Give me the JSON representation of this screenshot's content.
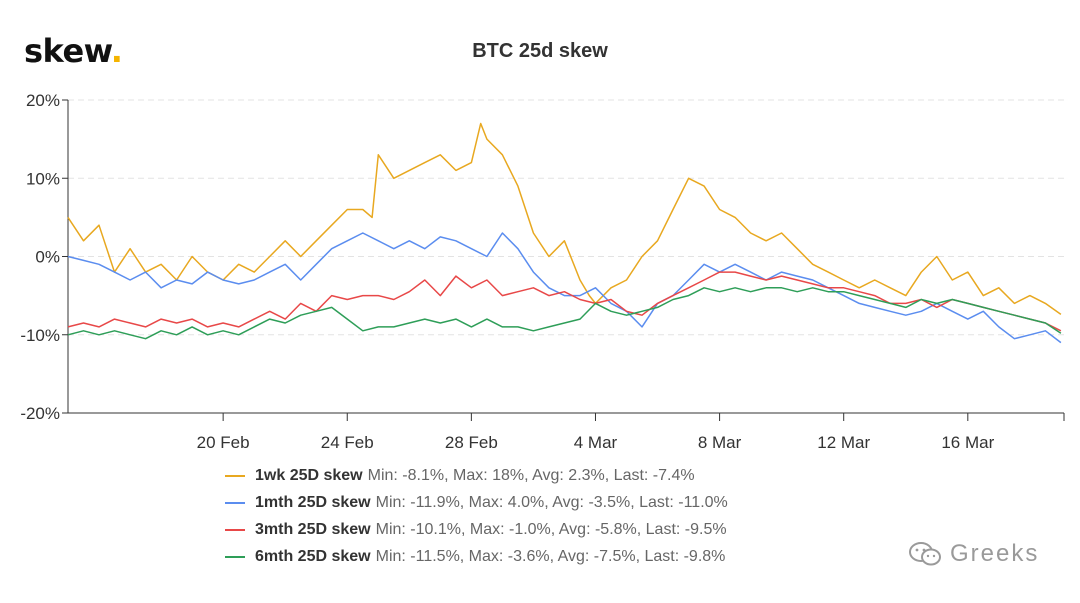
{
  "header": {
    "logo_text": "skew",
    "logo_dot": ".",
    "title": "BTC 25d skew"
  },
  "watermark": {
    "text": "Greeks",
    "icon": "wechat-icon"
  },
  "chart_data": {
    "type": "line",
    "title": "BTC 25d skew",
    "xlabel": "",
    "ylabel": "",
    "ylim": [
      -20,
      20
    ],
    "y_ticks": [
      20,
      10,
      0,
      -10,
      -20
    ],
    "y_tick_labels": [
      "20%",
      "10%",
      "0%",
      "-10%",
      "-20%"
    ],
    "xlim": [
      15.0,
      47.1
    ],
    "x_ticks": [
      20,
      24,
      28,
      32,
      36,
      40,
      44
    ],
    "x_tick_labels": [
      "20 Feb",
      "24 Feb",
      "28 Feb",
      "4 Mar",
      "8 Mar",
      "12 Mar",
      "16 Mar"
    ],
    "grid": "horizontal dashed",
    "legend_position": "bottom",
    "series": [
      {
        "name": "1wk 25D skew",
        "stats": "Min: -8.1%, Max: 18%, Avg: 2.3%, Last: -7.4%",
        "color": "#e8a820",
        "x": [
          15.0,
          15.5,
          16.0,
          16.5,
          17.0,
          17.5,
          18.0,
          18.5,
          19.0,
          19.5,
          20.0,
          20.5,
          21.0,
          21.5,
          22.0,
          22.5,
          23.0,
          23.5,
          24.0,
          24.5,
          24.8,
          25.0,
          25.5,
          26.0,
          26.5,
          27.0,
          27.5,
          28.0,
          28.3,
          28.5,
          29.0,
          29.5,
          30.0,
          30.5,
          31.0,
          31.5,
          31.8,
          32.0,
          32.5,
          33.0,
          33.5,
          34.0,
          34.5,
          35.0,
          35.5,
          36.0,
          36.5,
          37.0,
          37.5,
          38.0,
          38.5,
          39.0,
          39.5,
          40.0,
          40.5,
          41.0,
          41.5,
          42.0,
          42.5,
          43.0,
          43.5,
          44.0,
          44.5,
          45.0,
          45.5,
          46.0,
          46.5,
          47.0
        ],
        "values": [
          5.0,
          2.0,
          4.0,
          -2.0,
          1.0,
          -2.0,
          -1.0,
          -3.0,
          0.0,
          -2.0,
          -3.0,
          -1.0,
          -2.0,
          0.0,
          2.0,
          0.0,
          2.0,
          4.0,
          6.0,
          6.0,
          5.0,
          13.0,
          10.0,
          11.0,
          12.0,
          13.0,
          11.0,
          12.0,
          17.0,
          15.0,
          13.0,
          9.0,
          3.0,
          0.0,
          2.0,
          -3.0,
          -5.0,
          -6.0,
          -4.0,
          -3.0,
          0.0,
          2.0,
          6.0,
          10.0,
          9.0,
          6.0,
          5.0,
          3.0,
          2.0,
          3.0,
          1.0,
          -1.0,
          -2.0,
          -3.0,
          -4.0,
          -3.0,
          -4.0,
          -5.0,
          -2.0,
          0.0,
          -3.0,
          -2.0,
          -5.0,
          -4.0,
          -6.0,
          -5.0,
          -6.0,
          -7.4
        ]
      },
      {
        "name": "1mth 25D skew",
        "stats": "Min: -11.9%, Max: 4.0%, Avg: -3.5%, Last: -11.0%",
        "color": "#5b8def",
        "x": [
          15.0,
          15.5,
          16.0,
          16.5,
          17.0,
          17.5,
          18.0,
          18.5,
          19.0,
          19.5,
          20.0,
          20.5,
          21.0,
          21.5,
          22.0,
          22.5,
          23.0,
          23.5,
          24.0,
          24.5,
          25.0,
          25.5,
          26.0,
          26.5,
          27.0,
          27.5,
          28.0,
          28.5,
          29.0,
          29.5,
          30.0,
          30.5,
          31.0,
          31.5,
          32.0,
          32.5,
          33.0,
          33.5,
          34.0,
          34.5,
          35.0,
          35.5,
          36.0,
          36.5,
          37.0,
          37.5,
          38.0,
          38.5,
          39.0,
          39.5,
          40.0,
          40.5,
          41.0,
          41.5,
          42.0,
          42.5,
          43.0,
          43.5,
          44.0,
          44.5,
          45.0,
          45.5,
          46.0,
          46.5,
          47.0
        ],
        "values": [
          0.0,
          -0.5,
          -1.0,
          -2.0,
          -3.0,
          -2.0,
          -4.0,
          -3.0,
          -3.5,
          -2.0,
          -3.0,
          -3.5,
          -3.0,
          -2.0,
          -1.0,
          -3.0,
          -1.0,
          1.0,
          2.0,
          3.0,
          2.0,
          1.0,
          2.0,
          1.0,
          2.5,
          2.0,
          1.0,
          0.0,
          3.0,
          1.0,
          -2.0,
          -4.0,
          -5.0,
          -5.0,
          -4.0,
          -6.0,
          -7.0,
          -9.0,
          -6.0,
          -5.0,
          -3.0,
          -1.0,
          -2.0,
          -1.0,
          -2.0,
          -3.0,
          -2.0,
          -2.5,
          -3.0,
          -4.0,
          -5.0,
          -6.0,
          -6.5,
          -7.0,
          -7.5,
          -7.0,
          -6.0,
          -7.0,
          -8.0,
          -7.0,
          -9.0,
          -10.5,
          -10.0,
          -9.5,
          -11.0
        ]
      },
      {
        "name": "3mth 25D skew",
        "stats": "Min: -10.1%, Max: -1.0%, Avg: -5.8%, Last: -9.5%",
        "color": "#e84848",
        "x": [
          15.0,
          15.5,
          16.0,
          16.5,
          17.0,
          17.5,
          18.0,
          18.5,
          19.0,
          19.5,
          20.0,
          20.5,
          21.0,
          21.5,
          22.0,
          22.5,
          23.0,
          23.5,
          24.0,
          24.5,
          25.0,
          25.5,
          26.0,
          26.5,
          27.0,
          27.5,
          28.0,
          28.5,
          29.0,
          29.5,
          30.0,
          30.5,
          31.0,
          31.5,
          32.0,
          32.5,
          33.0,
          33.5,
          34.0,
          34.5,
          35.0,
          35.5,
          36.0,
          36.5,
          37.0,
          37.5,
          38.0,
          38.5,
          39.0,
          39.5,
          40.0,
          40.5,
          41.0,
          41.5,
          42.0,
          42.5,
          43.0,
          43.5,
          44.0,
          44.5,
          45.0,
          45.5,
          46.0,
          46.5,
          47.0
        ],
        "values": [
          -9.0,
          -8.5,
          -9.0,
          -8.0,
          -8.5,
          -9.0,
          -8.0,
          -8.5,
          -8.0,
          -9.0,
          -8.5,
          -9.0,
          -8.0,
          -7.0,
          -8.0,
          -6.0,
          -7.0,
          -5.0,
          -5.5,
          -5.0,
          -5.0,
          -5.5,
          -4.5,
          -3.0,
          -5.0,
          -2.5,
          -4.0,
          -3.0,
          -5.0,
          -4.5,
          -4.0,
          -5.0,
          -4.5,
          -5.5,
          -6.0,
          -5.5,
          -7.0,
          -7.5,
          -6.0,
          -5.0,
          -4.0,
          -3.0,
          -2.0,
          -2.0,
          -2.5,
          -3.0,
          -2.5,
          -3.0,
          -3.5,
          -4.0,
          -4.0,
          -4.5,
          -5.0,
          -6.0,
          -6.0,
          -5.5,
          -6.5,
          -5.5,
          -6.0,
          -6.5,
          -7.0,
          -7.5,
          -8.0,
          -8.5,
          -9.5
        ]
      },
      {
        "name": "6mth 25D skew",
        "stats": "Min: -11.5%, Max: -3.6%, Avg: -7.5%, Last: -9.8%",
        "color": "#2e9e58",
        "x": [
          15.0,
          15.5,
          16.0,
          16.5,
          17.0,
          17.5,
          18.0,
          18.5,
          19.0,
          19.5,
          20.0,
          20.5,
          21.0,
          21.5,
          22.0,
          22.5,
          23.0,
          23.5,
          24.0,
          24.5,
          25.0,
          25.5,
          26.0,
          26.5,
          27.0,
          27.5,
          28.0,
          28.5,
          29.0,
          29.5,
          30.0,
          30.5,
          31.0,
          31.5,
          32.0,
          32.5,
          33.0,
          33.5,
          34.0,
          34.5,
          35.0,
          35.5,
          36.0,
          36.5,
          37.0,
          37.5,
          38.0,
          38.5,
          39.0,
          39.5,
          40.0,
          40.5,
          41.0,
          41.5,
          42.0,
          42.5,
          43.0,
          43.5,
          44.0,
          44.5,
          45.0,
          45.5,
          46.0,
          46.5,
          47.0
        ],
        "values": [
          -10.0,
          -9.5,
          -10.0,
          -9.5,
          -10.0,
          -10.5,
          -9.5,
          -10.0,
          -9.0,
          -10.0,
          -9.5,
          -10.0,
          -9.0,
          -8.0,
          -8.5,
          -7.5,
          -7.0,
          -6.5,
          -8.0,
          -9.5,
          -9.0,
          -9.0,
          -8.5,
          -8.0,
          -8.5,
          -8.0,
          -9.0,
          -8.0,
          -9.0,
          -9.0,
          -9.5,
          -9.0,
          -8.5,
          -8.0,
          -6.0,
          -7.0,
          -7.5,
          -7.0,
          -6.5,
          -5.5,
          -5.0,
          -4.0,
          -4.5,
          -4.0,
          -4.5,
          -4.0,
          -4.0,
          -4.5,
          -4.0,
          -4.5,
          -4.5,
          -5.0,
          -5.5,
          -6.0,
          -6.5,
          -5.5,
          -6.0,
          -5.5,
          -6.0,
          -6.5,
          -7.0,
          -7.5,
          -8.0,
          -8.5,
          -9.8
        ]
      }
    ]
  }
}
